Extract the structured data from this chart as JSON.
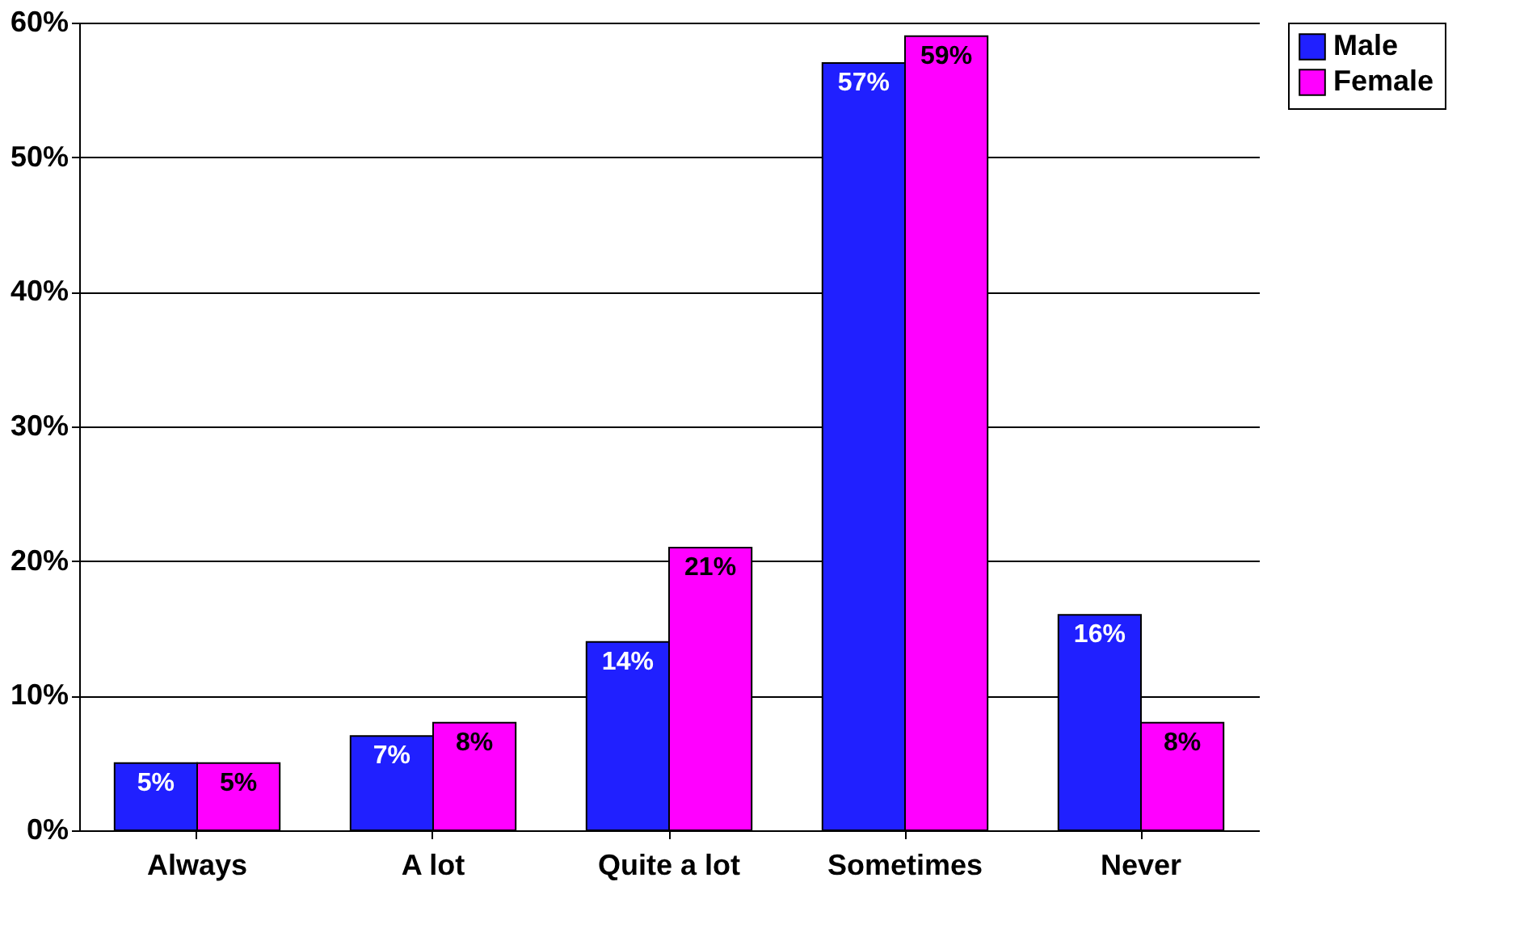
{
  "chart_data": {
    "type": "bar",
    "categories": [
      "Always",
      "A lot",
      "Quite a lot",
      "Sometimes",
      "Never"
    ],
    "series": [
      {
        "name": "Male",
        "color": "#2020ff",
        "values": [
          5,
          7,
          14,
          57,
          16
        ],
        "value_labels": [
          "5%",
          "7%",
          "14%",
          "57%",
          "16%"
        ]
      },
      {
        "name": "Female",
        "color": "#ff00ff",
        "values": [
          5,
          8,
          21,
          59,
          8
        ],
        "value_labels": [
          "5%",
          "8%",
          "21%",
          "59%",
          "8%"
        ]
      }
    ],
    "ylim": [
      0,
      60
    ],
    "yticks": [
      {
        "value": 0,
        "label": "0%"
      },
      {
        "value": 10,
        "label": "10%"
      },
      {
        "value": 20,
        "label": "20%"
      },
      {
        "value": 30,
        "label": "30%"
      },
      {
        "value": 40,
        "label": "40%"
      },
      {
        "value": 50,
        "label": "50%"
      },
      {
        "value": 60,
        "label": "60%"
      }
    ],
    "grid": "y",
    "legend": "right"
  }
}
